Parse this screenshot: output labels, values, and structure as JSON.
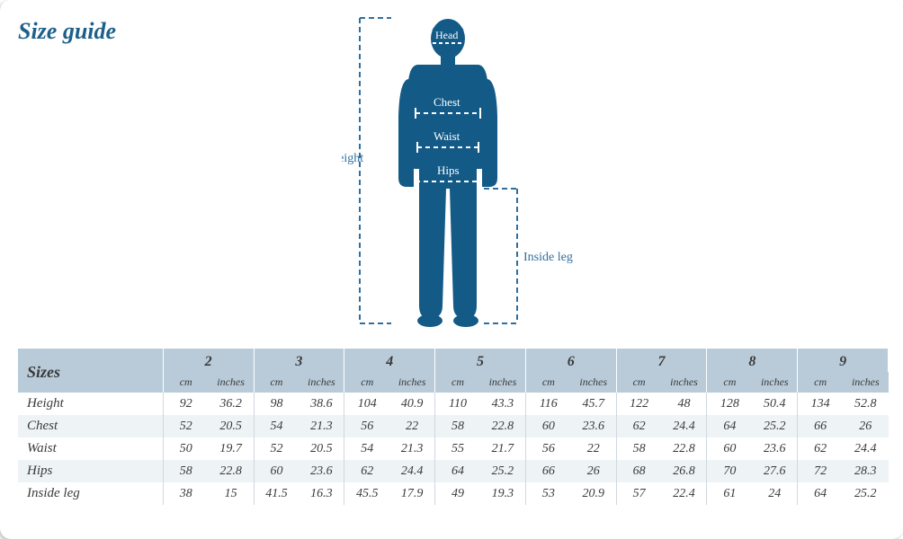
{
  "title": "Size guide",
  "colors": {
    "heading_text": "#1d5f8a",
    "figure_fill": "#135a87",
    "dash": "#2f6fa0",
    "diagram_label": "#2f6fa0",
    "body_label_on_figure": "#ffffff",
    "table_header_bg": "#b9cbd8",
    "row_alt_bg": "#eef3f6",
    "table_text": "#3a3a3a",
    "cell_border": "#d0d8de"
  },
  "diagram": {
    "labels": {
      "head": "Head",
      "chest": "Chest",
      "waist": "Waist",
      "hips": "Hips",
      "height": "Height",
      "inside_leg": "Inside leg"
    }
  },
  "sizes_header": "Sizes",
  "unit_cm": "cm",
  "unit_in": "inches",
  "size_columns": [
    "2",
    "3",
    "4",
    "5",
    "6",
    "7",
    "8",
    "9"
  ],
  "measurements": [
    {
      "label": "Height",
      "cm": [
        92,
        98,
        104,
        110,
        116,
        122,
        128,
        134
      ],
      "in": [
        36.2,
        38.6,
        40.9,
        43.3,
        45.7,
        48.0,
        50.4,
        52.8
      ]
    },
    {
      "label": "Chest",
      "cm": [
        52,
        54,
        56,
        58,
        60,
        62,
        64,
        66
      ],
      "in": [
        20.5,
        21.3,
        22.0,
        22.8,
        23.6,
        24.4,
        25.2,
        26.0
      ]
    },
    {
      "label": "Waist",
      "cm": [
        50,
        52,
        54,
        55,
        56,
        58,
        60,
        62
      ],
      "in": [
        19.7,
        20.5,
        21.3,
        21.7,
        22.0,
        22.8,
        23.6,
        24.4
      ]
    },
    {
      "label": "Hips",
      "cm": [
        58,
        60,
        62,
        64,
        66,
        68,
        70,
        72
      ],
      "in": [
        22.8,
        23.6,
        24.4,
        25.2,
        26.0,
        26.8,
        27.6,
        28.3
      ]
    },
    {
      "label": "Inside leg",
      "cm": [
        38,
        41.5,
        45.5,
        49,
        53.0,
        57,
        61,
        64
      ],
      "in": [
        15,
        16.3,
        17.9,
        19.3,
        20.9,
        22.4,
        24.0,
        25.2
      ]
    }
  ]
}
